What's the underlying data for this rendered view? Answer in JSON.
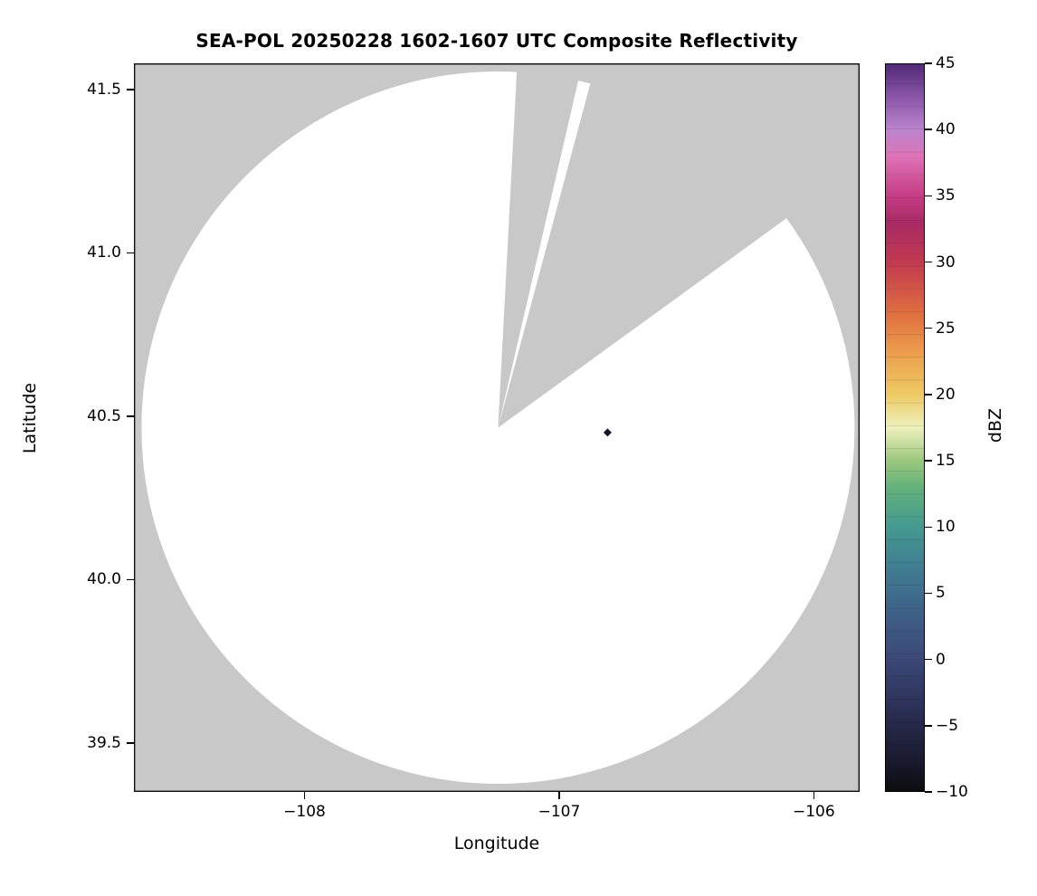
{
  "chart_data": {
    "type": "radar-coverage-map",
    "title": "SEA-POL 20250228 1602-1607 UTC Composite Reflectivity",
    "xlabel": "Longitude",
    "ylabel": "Latitude",
    "xlim": [
      -108.67,
      -105.82
    ],
    "ylim": [
      39.35,
      41.58
    ],
    "xticks": [
      {
        "value": -108,
        "label": "−108"
      },
      {
        "value": -107,
        "label": "−107"
      },
      {
        "value": -106,
        "label": "−106"
      }
    ],
    "yticks": [
      {
        "value": 39.5,
        "label": "39.5"
      },
      {
        "value": 40.0,
        "label": "40.0"
      },
      {
        "value": 40.5,
        "label": "40.5"
      },
      {
        "value": 41.0,
        "label": "41.0"
      },
      {
        "value": 41.5,
        "label": "41.5"
      }
    ],
    "grid": false,
    "background_outside": "#c8c8c8",
    "coverage": {
      "fill": "#ffffff",
      "center_lon": -107.24,
      "center_lat": 40.465,
      "radius_deg_lon": 1.4,
      "radius_deg_lat": 1.09,
      "blocked_sectors_deg_from_north": [
        {
          "start_deg": 3,
          "end_deg": 13,
          "extends_beyond_radius": false
        },
        {
          "start_deg": 15,
          "end_deg": 54,
          "extends_beyond_radius": true
        }
      ]
    },
    "echoes": [
      {
        "lon": -106.81,
        "lat": 40.45,
        "dbz_estimate": -5,
        "color": "#15152a"
      }
    ],
    "colorbar": {
      "label": "dBZ",
      "min": -10,
      "max": 45,
      "ticks": [
        {
          "value": -10,
          "label": "−10"
        },
        {
          "value": -5,
          "label": "−5"
        },
        {
          "value": 0,
          "label": "0"
        },
        {
          "value": 5,
          "label": "5"
        },
        {
          "value": 10,
          "label": "10"
        },
        {
          "value": 15,
          "label": "15"
        },
        {
          "value": 20,
          "label": "20"
        },
        {
          "value": 25,
          "label": "25"
        },
        {
          "value": 30,
          "label": "30"
        },
        {
          "value": 35,
          "label": "35"
        },
        {
          "value": 40,
          "label": "40"
        },
        {
          "value": 45,
          "label": "45"
        }
      ],
      "stops": [
        {
          "value": -10,
          "color": "#0d0d10"
        },
        {
          "value": -7.5,
          "color": "#1a1b30"
        },
        {
          "value": -5,
          "color": "#262848"
        },
        {
          "value": -2.5,
          "color": "#313862"
        },
        {
          "value": 0,
          "color": "#3b4878"
        },
        {
          "value": 2.5,
          "color": "#3e5a84"
        },
        {
          "value": 5,
          "color": "#3f6d8e"
        },
        {
          "value": 7.5,
          "color": "#418392"
        },
        {
          "value": 10,
          "color": "#449a90"
        },
        {
          "value": 13,
          "color": "#63b27b"
        },
        {
          "value": 15,
          "color": "#9cc87e"
        },
        {
          "value": 17.5,
          "color": "#eef0bd"
        },
        {
          "value": 20,
          "color": "#eecb64"
        },
        {
          "value": 23,
          "color": "#eca04e"
        },
        {
          "value": 26,
          "color": "#e0703f"
        },
        {
          "value": 30,
          "color": "#c23a50"
        },
        {
          "value": 33,
          "color": "#a82a65"
        },
        {
          "value": 35,
          "color": "#c53c85"
        },
        {
          "value": 38,
          "color": "#de72b6"
        },
        {
          "value": 40,
          "color": "#bb85ce"
        },
        {
          "value": 42.5,
          "color": "#8a55a8"
        },
        {
          "value": 45,
          "color": "#512a76"
        }
      ]
    }
  }
}
